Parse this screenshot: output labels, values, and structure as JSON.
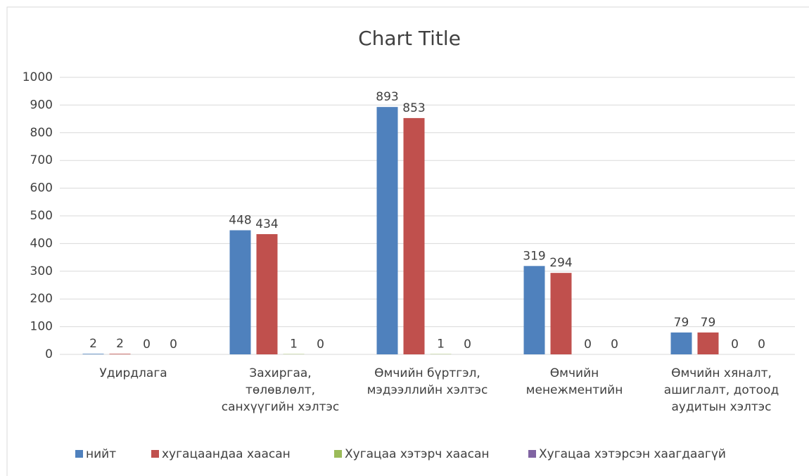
{
  "chart_data": {
    "type": "bar",
    "title": "Chart Title",
    "categories": [
      "Удирдлага",
      "Захиргаа, төлөвлөлт, санхүүгийн хэлтэс",
      "Өмчийн бүртгэл, мэдээллийн хэлтэс",
      "Өмчийн менежментийн",
      "Өмчийн хяналт, ашиглалт, дотоод аудитын хэлтэс"
    ],
    "series": [
      {
        "name": "нийт",
        "color": "#4f81bd",
        "values": [
          2,
          448,
          893,
          319,
          79
        ]
      },
      {
        "name": "хугацаандаа хаасан",
        "color": "#c0504d",
        "values": [
          2,
          434,
          853,
          294,
          79
        ]
      },
      {
        "name": "Хугацаа хэтэрч хаасан",
        "color": "#9bbb59",
        "values": [
          0,
          1,
          1,
          0,
          0
        ]
      },
      {
        "name": "Хугацаа хэтэрсэн хаагдаагүй",
        "color": "#8064a2",
        "values": [
          0,
          0,
          0,
          0,
          0
        ]
      }
    ],
    "ylim": [
      0,
      1000
    ],
    "yticks": [
      0,
      100,
      200,
      300,
      400,
      500,
      600,
      700,
      800,
      900,
      1000
    ],
    "grid": true,
    "legend": "bottom"
  }
}
